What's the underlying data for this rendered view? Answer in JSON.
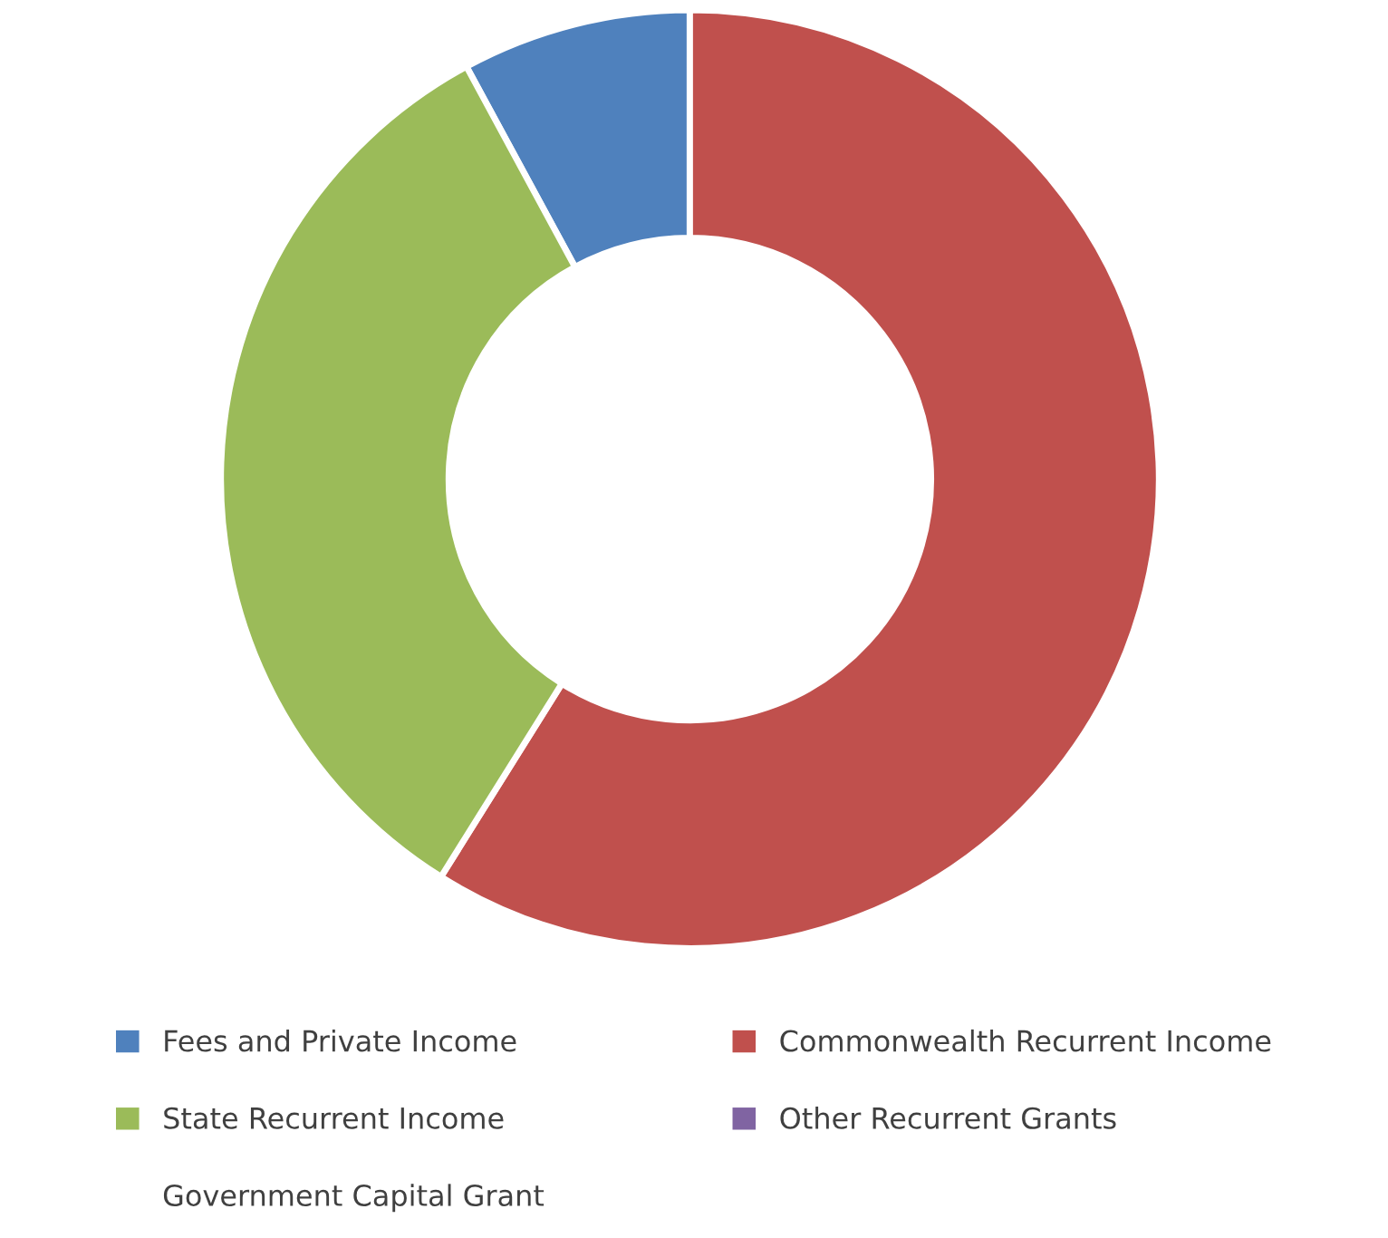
{
  "chart_data": {
    "type": "donut",
    "categories": [
      "Fees and Private Income",
      "Commonwealth Recurrent Income",
      "State Recurrent Income",
      "Other Recurrent Grants",
      "Government Capital Grant"
    ],
    "values": [
      7.9,
      58.9,
      33.2,
      0,
      0
    ],
    "colors": [
      "#4f81bd",
      "#c0504d",
      "#9bbb59",
      "#8064a2",
      "#ffffff"
    ],
    "legend": "bottom"
  }
}
